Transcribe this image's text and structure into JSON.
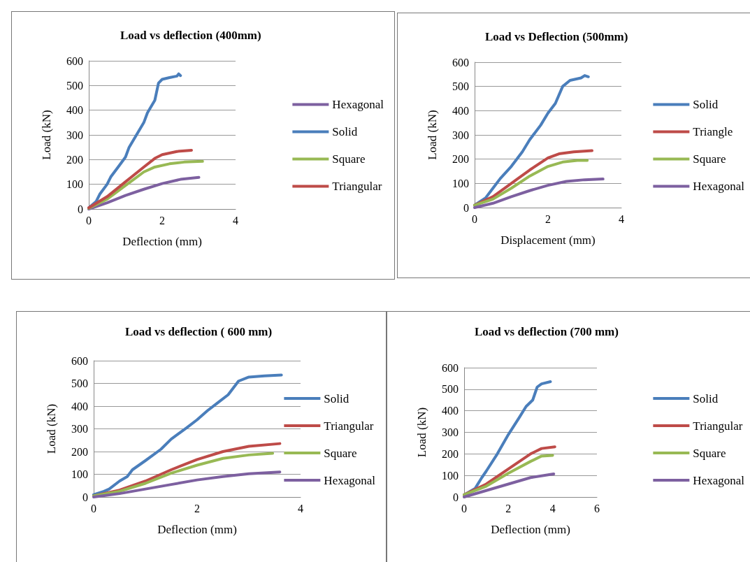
{
  "chart_data": [
    {
      "type": "line",
      "title": "Load vs deflection (400mm)",
      "xlabel": "Deflection (mm)",
      "ylabel": "Load (kN)",
      "xlim": [
        0,
        4
      ],
      "xticks": [
        0,
        2,
        4
      ],
      "ylim": [
        0,
        600
      ],
      "yticks": [
        0,
        100,
        200,
        300,
        400,
        500,
        600
      ],
      "grid": "y",
      "legend": "right",
      "marker": "none",
      "line_style": "solid",
      "series": [
        {
          "name": "Hexagonal",
          "color": "#7d60a0",
          "x": [
            0,
            0.5,
            1,
            1.5,
            2,
            2.5,
            3.0
          ],
          "values": [
            0,
            25,
            55,
            80,
            103,
            120,
            128
          ]
        },
        {
          "name": "Solid",
          "color": "#4a7ebb",
          "x": [
            0,
            0.2,
            0.3,
            0.5,
            0.6,
            0.8,
            1.0,
            1.1,
            1.3,
            1.5,
            1.6,
            1.8,
            1.9,
            2.0,
            2.2,
            2.4,
            2.45,
            2.5
          ],
          "values": [
            5,
            30,
            60,
            100,
            130,
            170,
            210,
            250,
            300,
            350,
            390,
            440,
            510,
            525,
            532,
            538,
            547,
            540
          ]
        },
        {
          "name": "Square",
          "color": "#98b954",
          "x": [
            0,
            0.5,
            1,
            1.5,
            1.8,
            2.2,
            2.6,
            3.1
          ],
          "values": [
            3,
            40,
            95,
            150,
            170,
            183,
            190,
            193
          ]
        },
        {
          "name": "Triangular",
          "color": "#be4b48",
          "x": [
            0,
            0.5,
            1,
            1.5,
            1.8,
            2,
            2.4,
            2.8
          ],
          "values": [
            5,
            50,
            110,
            170,
            205,
            220,
            233,
            238
          ]
        }
      ]
    },
    {
      "type": "line",
      "title": "Load vs Deflection (500mm)",
      "xlabel": "Displacement (mm)",
      "ylabel": "Load (kN)",
      "xlim": [
        0,
        4
      ],
      "xticks": [
        0,
        2,
        4
      ],
      "ylim": [
        0,
        600
      ],
      "yticks": [
        0,
        100,
        200,
        300,
        400,
        500,
        600
      ],
      "grid": "y",
      "legend": "right",
      "marker": "none",
      "line_style": "solid",
      "series": [
        {
          "name": "Solid",
          "color": "#4a7ebb",
          "x": [
            0,
            0.3,
            0.5,
            0.7,
            1,
            1.3,
            1.5,
            1.8,
            2,
            2.2,
            2.4,
            2.6,
            2.9,
            3.0,
            3.1
          ],
          "values": [
            10,
            40,
            80,
            120,
            170,
            230,
            280,
            340,
            390,
            430,
            500,
            525,
            535,
            545,
            540
          ]
        },
        {
          "name": "Triangle",
          "color": "#be4b48",
          "x": [
            0,
            0.5,
            1,
            1.5,
            2,
            2.3,
            2.7,
            3.2
          ],
          "values": [
            10,
            45,
            100,
            155,
            205,
            222,
            230,
            235
          ]
        },
        {
          "name": "Square",
          "color": "#98b954",
          "x": [
            0,
            0.5,
            1,
            1.5,
            2,
            2.4,
            2.8,
            3.07
          ],
          "values": [
            10,
            35,
            80,
            130,
            170,
            188,
            195,
            195
          ]
        },
        {
          "name": "Hexagonal",
          "color": "#7d60a0",
          "x": [
            0,
            0.5,
            1,
            1.5,
            2,
            2.5,
            3,
            3.5
          ],
          "values": [
            0,
            18,
            45,
            70,
            92,
            108,
            115,
            118
          ]
        }
      ]
    },
    {
      "type": "line",
      "title": "Load vs deflection ( 600 mm)",
      "xlabel": "Deflection (mm)",
      "ylabel": "Load (kN)",
      "xlim": [
        0,
        4
      ],
      "xticks": [
        0,
        2,
        4
      ],
      "ylim": [
        0,
        600
      ],
      "yticks": [
        0,
        100,
        200,
        300,
        400,
        500,
        600
      ],
      "grid": "y",
      "legend": "right",
      "marker": "none",
      "line_style": "solid",
      "series": [
        {
          "name": "Solid",
          "color": "#4a7ebb",
          "x": [
            0,
            0.2,
            0.3,
            0.5,
            0.65,
            0.75,
            1,
            1.3,
            1.5,
            1.8,
            2,
            2.2,
            2.4,
            2.6,
            2.8,
            3.0,
            3.3,
            3.63
          ],
          "values": [
            10,
            25,
            35,
            70,
            90,
            120,
            160,
            210,
            255,
            305,
            340,
            380,
            415,
            450,
            510,
            528,
            533,
            537
          ]
        },
        {
          "name": "Triangular",
          "color": "#be4b48",
          "x": [
            0,
            0.5,
            1,
            1.5,
            2,
            2.5,
            3,
            3.6
          ],
          "values": [
            5,
            30,
            70,
            120,
            165,
            200,
            223,
            235
          ]
        },
        {
          "name": "Square",
          "color": "#98b954",
          "x": [
            0,
            0.5,
            1,
            1.5,
            2,
            2.5,
            3,
            3.46
          ],
          "values": [
            5,
            25,
            60,
            105,
            140,
            170,
            185,
            192
          ]
        },
        {
          "name": "Hexagonal",
          "color": "#7d60a0",
          "x": [
            0,
            0.5,
            1,
            1.5,
            2,
            2.5,
            3,
            3.6
          ],
          "values": [
            0,
            15,
            35,
            55,
            75,
            90,
            102,
            110
          ]
        }
      ]
    },
    {
      "type": "line",
      "title": "Load vs deflection (700 mm)",
      "xlabel": "Deflection (mm)",
      "ylabel": "Load (kN)",
      "xlim": [
        0,
        6
      ],
      "xticks": [
        0,
        2,
        4,
        6
      ],
      "ylim": [
        0,
        600
      ],
      "yticks": [
        0,
        100,
        200,
        300,
        400,
        500,
        600
      ],
      "grid": "y",
      "legend": "right",
      "marker": "none",
      "line_style": "solid",
      "series": [
        {
          "name": "Solid",
          "color": "#4a7ebb",
          "x": [
            0,
            0.5,
            0.8,
            1,
            1.5,
            2,
            2.5,
            2.8,
            3.1,
            3.3,
            3.5,
            3.9
          ],
          "values": [
            10,
            40,
            90,
            120,
            200,
            290,
            370,
            420,
            450,
            510,
            525,
            535
          ]
        },
        {
          "name": "Triangular",
          "color": "#be4b48",
          "x": [
            0,
            1,
            2,
            3,
            3.5,
            4.1
          ],
          "values": [
            10,
            60,
            130,
            200,
            225,
            233
          ]
        },
        {
          "name": "Square",
          "color": "#98b954",
          "x": [
            0,
            1,
            2,
            3,
            3.5,
            4.0
          ],
          "values": [
            10,
            50,
            110,
            165,
            190,
            193
          ]
        },
        {
          "name": "Hexagonal",
          "color": "#7d60a0",
          "x": [
            0,
            1,
            2,
            3,
            4.05
          ],
          "values": [
            0,
            30,
            60,
            90,
            107
          ]
        }
      ]
    }
  ]
}
